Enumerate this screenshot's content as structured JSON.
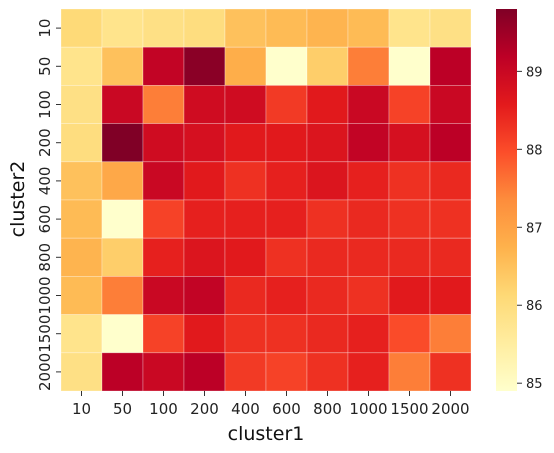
{
  "chart_data": {
    "type": "heatmap",
    "xlabel": "cluster1",
    "ylabel": "cluster2",
    "x_categories": [
      "10",
      "50",
      "100",
      "200",
      "400",
      "600",
      "800",
      "1000",
      "1500",
      "2000"
    ],
    "y_categories": [
      "10",
      "50",
      "100",
      "200",
      "400",
      "600",
      "800",
      "1000",
      "1500",
      "2000"
    ],
    "values": [
      [
        86.1,
        85.8,
        85.9,
        86.0,
        86.5,
        86.6,
        86.7,
        86.6,
        85.8,
        85.9
      ],
      [
        85.8,
        86.5,
        89.1,
        89.7,
        86.8,
        84.9,
        86.3,
        87.5,
        84.9,
        89.2
      ],
      [
        85.9,
        89.0,
        87.5,
        88.9,
        88.9,
        88.2,
        88.6,
        89.0,
        88.1,
        89.0
      ],
      [
        86.0,
        89.8,
        88.9,
        88.8,
        88.6,
        88.6,
        88.7,
        89.1,
        88.8,
        89.2
      ],
      [
        86.5,
        86.9,
        89.0,
        88.6,
        88.3,
        88.5,
        88.7,
        88.5,
        88.3,
        88.4
      ],
      [
        86.6,
        84.9,
        88.1,
        88.5,
        88.5,
        88.5,
        88.3,
        88.4,
        88.3,
        88.3
      ],
      [
        86.7,
        86.3,
        88.5,
        88.7,
        88.6,
        88.3,
        88.4,
        88.4,
        88.4,
        88.4
      ],
      [
        86.6,
        87.5,
        89.0,
        89.1,
        88.4,
        88.5,
        88.4,
        88.3,
        88.6,
        88.6
      ],
      [
        85.8,
        84.9,
        88.1,
        88.6,
        88.3,
        88.3,
        88.4,
        88.5,
        88.0,
        87.5
      ],
      [
        85.9,
        89.2,
        89.0,
        89.2,
        88.2,
        88.1,
        88.3,
        88.5,
        87.5,
        88.3
      ]
    ],
    "colorbar": {
      "min": 84.9,
      "max": 89.8,
      "ticks": [
        "85",
        "86",
        "87",
        "88",
        "89"
      ],
      "tick_values": [
        85,
        86,
        87,
        88,
        89
      ]
    },
    "colormap": [
      "#ffffcc",
      "#ffeda0",
      "#fed976",
      "#feb24c",
      "#fd8d3c",
      "#fc4e2a",
      "#e31a1c",
      "#bd0026",
      "#800026"
    ],
    "grid": true,
    "legend": "colorbar-right"
  }
}
